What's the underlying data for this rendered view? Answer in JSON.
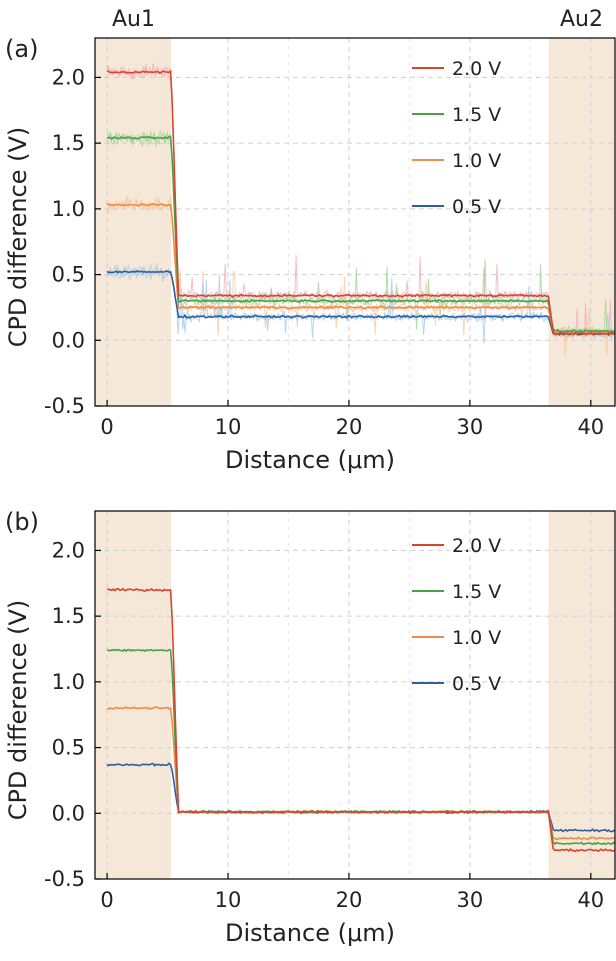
{
  "figure": {
    "region_labels": {
      "left": "Au1",
      "right": "Au2"
    },
    "region_color": "#f6e8d8",
    "grid_color": "#cfcfcf",
    "series_colors": {
      "2.0 V": "#d9442d",
      "1.5 V": "#4aa043",
      "1.0 V": "#f08a4a",
      "0.5 V": "#2e5f9a"
    },
    "noise_colors": {
      "2.0 V": "#f2a9b4",
      "1.5 V": "#9ad38f",
      "1.0 V": "#f7c79a",
      "0.5 V": "#9fc8e4"
    }
  },
  "chart_data": [
    {
      "type": "line",
      "panel_label": "(a)",
      "xlabel": "Distance (μm)",
      "ylabel": "CPD difference (V)",
      "xlim": [
        -1,
        42
      ],
      "ylim": [
        -0.5,
        2.3
      ],
      "xticks": [
        0,
        10,
        20,
        30,
        40
      ],
      "xtick_labels": [
        "0",
        "10",
        "20",
        "30",
        "40"
      ],
      "yticks": [
        -0.5,
        0.0,
        0.5,
        1.0,
        1.5,
        2.0
      ],
      "ytick_labels": [
        "-0.5",
        "0.0",
        "0.5",
        "1.0",
        "1.5",
        "2.0"
      ],
      "regions": [
        [
          -1,
          5.3
        ],
        [
          36.5,
          42
        ]
      ],
      "noisy": true,
      "legend": [
        "2.0 V",
        "1.5 V",
        "1.0 V",
        "0.5 V"
      ],
      "series": [
        {
          "name": "2.0 V",
          "x": [
            0,
            5.3,
            5.9,
            36.5,
            36.9,
            42
          ],
          "y": [
            2.04,
            2.04,
            0.34,
            0.34,
            0.05,
            0.05
          ]
        },
        {
          "name": "1.5 V",
          "x": [
            0,
            5.3,
            5.9,
            36.5,
            36.9,
            42
          ],
          "y": [
            1.54,
            1.54,
            0.3,
            0.3,
            0.07,
            0.07
          ]
        },
        {
          "name": "1.0 V",
          "x": [
            0,
            5.3,
            5.9,
            36.5,
            36.9,
            42
          ],
          "y": [
            1.03,
            1.03,
            0.25,
            0.25,
            0.06,
            0.06
          ]
        },
        {
          "name": "0.5 V",
          "x": [
            0,
            5.3,
            5.9,
            36.5,
            36.9,
            42
          ],
          "y": [
            0.52,
            0.52,
            0.18,
            0.18,
            0.05,
            0.05
          ]
        }
      ]
    },
    {
      "type": "line",
      "panel_label": "(b)",
      "xlabel": "Distance (μm)",
      "ylabel": "CPD difference (V)",
      "xlim": [
        -1,
        42
      ],
      "ylim": [
        -0.5,
        2.3
      ],
      "xticks": [
        0,
        10,
        20,
        30,
        40
      ],
      "xtick_labels": [
        "0",
        "10",
        "20",
        "30",
        "40"
      ],
      "yticks": [
        -0.5,
        0.0,
        0.5,
        1.0,
        1.5,
        2.0
      ],
      "ytick_labels": [
        "-0.5",
        "0.0",
        "0.5",
        "1.0",
        "1.5",
        "2.0"
      ],
      "regions": [
        [
          -1,
          5.3
        ],
        [
          36.5,
          42
        ]
      ],
      "noisy": false,
      "legend": [
        "2.0 V",
        "1.5 V",
        "1.0 V",
        "0.5 V"
      ],
      "series": [
        {
          "name": "2.0 V",
          "x": [
            0,
            5.3,
            5.9,
            36.5,
            36.9,
            42
          ],
          "y": [
            1.7,
            1.7,
            0.01,
            0.01,
            -0.28,
            -0.28
          ]
        },
        {
          "name": "1.5 V",
          "x": [
            0,
            5.3,
            5.9,
            36.5,
            36.9,
            42
          ],
          "y": [
            1.24,
            1.24,
            0.01,
            0.01,
            -0.23,
            -0.23
          ]
        },
        {
          "name": "1.0 V",
          "x": [
            0,
            5.3,
            5.9,
            36.5,
            36.9,
            42
          ],
          "y": [
            0.8,
            0.8,
            0.01,
            0.01,
            -0.19,
            -0.19
          ]
        },
        {
          "name": "0.5 V",
          "x": [
            0,
            5.3,
            5.9,
            36.5,
            36.9,
            42
          ],
          "y": [
            0.37,
            0.37,
            0.01,
            0.01,
            -0.13,
            -0.13
          ]
        }
      ]
    }
  ]
}
